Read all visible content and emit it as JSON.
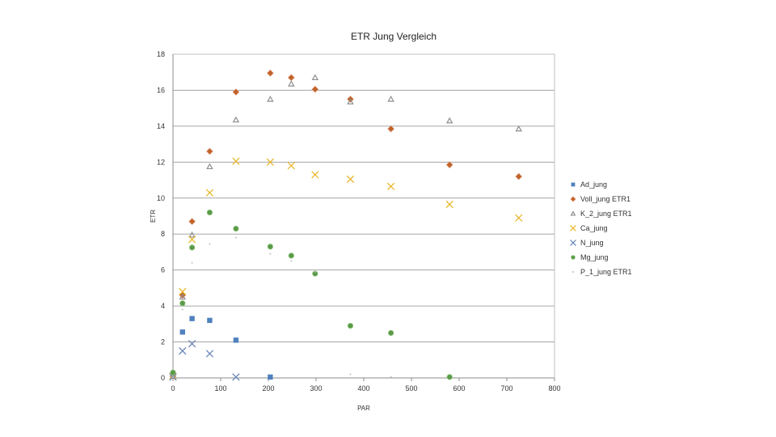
{
  "chart_data": {
    "type": "scatter",
    "title": "ETR Jung Vergleich",
    "xlabel": "PAR",
    "ylabel": "ETR",
    "xlim": [
      0,
      800
    ],
    "ylim": [
      0,
      18
    ],
    "xticks": [
      "0",
      "100",
      "200",
      "300",
      "400",
      "500",
      "600",
      "700",
      "800"
    ],
    "yticks": [
      "0",
      "2",
      "4",
      "6",
      "8",
      "10",
      "12",
      "14",
      "16",
      "18"
    ],
    "grid": "horizontal",
    "legend_position": "right",
    "series": [
      {
        "name": "Ad_jung",
        "marker": "square",
        "color": "#4f81bd",
        "points": [
          [
            0,
            0.1
          ],
          [
            20,
            2.55
          ],
          [
            40,
            3.3
          ],
          [
            77,
            3.2
          ],
          [
            132,
            2.1
          ],
          [
            204,
            0.05
          ]
        ]
      },
      {
        "name": "Voll_jung ETR1",
        "marker": "diamond",
        "color": "#c0632b",
        "points": [
          [
            0,
            0.1
          ],
          [
            20,
            4.6
          ],
          [
            40,
            8.7
          ],
          [
            77,
            12.6
          ],
          [
            132,
            15.9
          ],
          [
            204,
            16.95
          ],
          [
            248,
            16.7
          ],
          [
            298,
            16.05
          ],
          [
            372,
            15.5
          ],
          [
            457,
            13.85
          ],
          [
            580,
            11.85
          ],
          [
            725,
            11.2
          ]
        ]
      },
      {
        "name": "K_2_jung ETR1",
        "marker": "triangle",
        "color": "#8e8e8e",
        "points": [
          [
            0,
            0.1
          ],
          [
            20,
            4.5
          ],
          [
            40,
            7.95
          ],
          [
            77,
            11.75
          ],
          [
            132,
            14.35
          ],
          [
            204,
            15.5
          ],
          [
            248,
            16.35
          ],
          [
            298,
            16.7
          ],
          [
            372,
            15.35
          ],
          [
            457,
            15.5
          ],
          [
            580,
            14.3
          ],
          [
            725,
            13.85
          ]
        ]
      },
      {
        "name": "Ca_jung",
        "marker": "x",
        "color": "#e8b830",
        "points": [
          [
            0,
            0.1
          ],
          [
            20,
            4.8
          ],
          [
            40,
            7.7
          ],
          [
            77,
            10.3
          ],
          [
            132,
            12.05
          ],
          [
            204,
            12.0
          ],
          [
            248,
            11.8
          ],
          [
            298,
            11.3
          ],
          [
            372,
            11.05
          ],
          [
            457,
            10.65
          ],
          [
            580,
            9.65
          ],
          [
            725,
            8.9
          ]
        ]
      },
      {
        "name": "N_jung",
        "marker": "x",
        "color": "#6a86b8",
        "points": [
          [
            0,
            0.05
          ],
          [
            20,
            1.5
          ],
          [
            40,
            1.9
          ],
          [
            77,
            1.35
          ],
          [
            132,
            0.05
          ]
        ]
      },
      {
        "name": "Mg_jung",
        "marker": "circle",
        "color": "#5a9a48",
        "points": [
          [
            0,
            0.3
          ],
          [
            20,
            4.15
          ],
          [
            40,
            7.25
          ],
          [
            77,
            9.2
          ],
          [
            132,
            8.3
          ],
          [
            204,
            7.3
          ],
          [
            248,
            6.8
          ],
          [
            298,
            5.8
          ],
          [
            372,
            2.9
          ],
          [
            457,
            2.5
          ],
          [
            580,
            0.05
          ]
        ]
      },
      {
        "name": "P_1_jung ETR1",
        "marker": "dot",
        "color": "#bfbfbf",
        "points": [
          [
            0,
            0.05
          ],
          [
            20,
            3.8
          ],
          [
            40,
            6.4
          ],
          [
            77,
            7.45
          ],
          [
            132,
            7.8
          ],
          [
            204,
            6.9
          ],
          [
            248,
            6.5
          ],
          [
            298,
            5.9
          ],
          [
            372,
            0.2
          ],
          [
            457,
            0.05
          ]
        ]
      }
    ]
  }
}
